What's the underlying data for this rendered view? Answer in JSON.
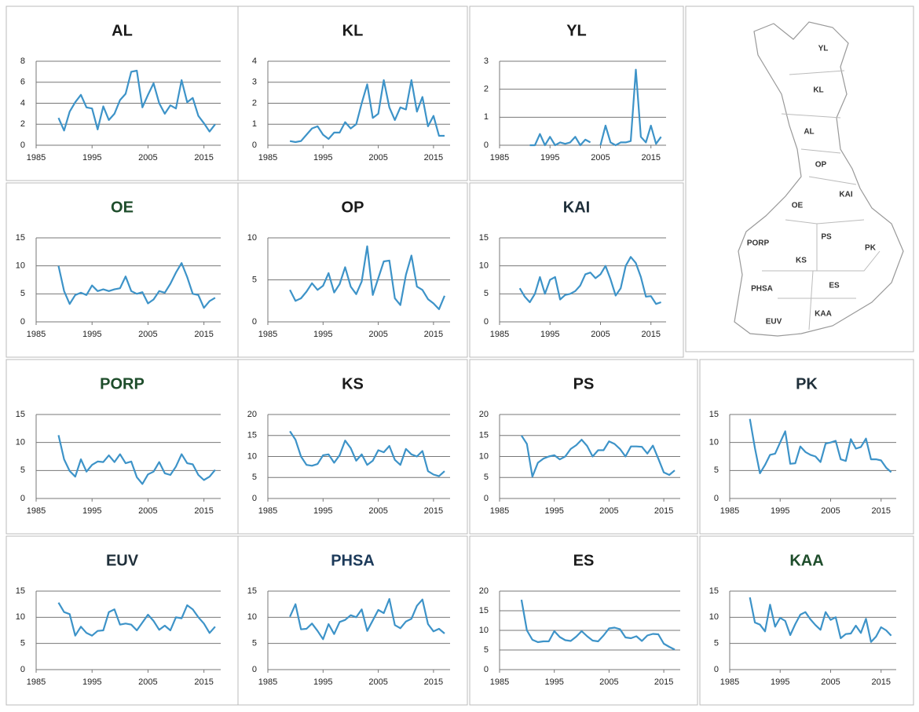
{
  "chart_data": [
    {
      "type": "line",
      "title": "AL",
      "title_color": "#1a1a1a",
      "color": "#3d93c8",
      "x": [
        1989,
        1990,
        1991,
        1992,
        1993,
        1994,
        1995,
        1996,
        1997,
        1998,
        1999,
        2000,
        2001,
        2002,
        2003,
        2004,
        2005,
        2006,
        2007,
        2008,
        2009,
        2010,
        2011,
        2012,
        2013,
        2014,
        2015,
        2016,
        2017
      ],
      "series": [
        {
          "values": [
            2.6,
            1.4,
            3.2,
            4.1,
            4.8,
            3.6,
            3.5,
            1.5,
            3.7,
            2.4,
            3.0,
            4.3,
            4.9,
            7.0,
            7.1,
            3.6,
            4.8,
            5.9,
            4.0,
            3.0,
            3.8,
            3.5,
            6.2,
            4.1,
            4.5,
            2.8,
            2.1,
            1.3,
            2.0
          ]
        }
      ],
      "xlim": [
        1985,
        2018
      ],
      "xticks": [
        1985,
        1995,
        2005,
        2015
      ],
      "ylim": [
        0,
        8
      ],
      "yticks": [
        0,
        2,
        4,
        6,
        8
      ],
      "grid": true
    },
    {
      "type": "line",
      "title": "KL",
      "title_color": "#1a1a1a",
      "color": "#3d93c8",
      "x": [
        1989,
        1990,
        1991,
        1992,
        1993,
        1994,
        1995,
        1996,
        1997,
        1998,
        1999,
        2000,
        2001,
        2002,
        2003,
        2004,
        2005,
        2006,
        2007,
        2008,
        2009,
        2010,
        2011,
        2012,
        2013,
        2014,
        2015,
        2016,
        2017
      ],
      "series": [
        {
          "values": [
            0.2,
            0.15,
            0.2,
            0.5,
            0.8,
            0.9,
            0.5,
            0.3,
            0.6,
            0.6,
            1.1,
            0.8,
            1.0,
            2.0,
            2.9,
            1.3,
            1.5,
            3.1,
            1.8,
            1.2,
            1.8,
            1.7,
            3.1,
            1.6,
            2.3,
            0.9,
            1.4,
            0.45,
            0.45
          ]
        }
      ],
      "xlim": [
        1985,
        2018
      ],
      "xticks": [
        1985,
        1995,
        2005,
        2015
      ],
      "ylim": [
        0,
        4
      ],
      "yticks": [
        0,
        1,
        2,
        3,
        4
      ],
      "grid": true
    },
    {
      "type": "line",
      "title": "YL",
      "title_color": "#1a1a1a",
      "color": "#3d93c8",
      "x": [
        1989,
        1990,
        1991,
        1992,
        1993,
        1994,
        1995,
        1996,
        1997,
        1998,
        1999,
        2000,
        2001,
        2002,
        2003,
        2004,
        2005,
        2006,
        2007,
        2008,
        2009,
        2010,
        2011,
        2012,
        2013,
        2014,
        2015,
        2016,
        2017
      ],
      "series": [
        {
          "values": [
            null,
            null,
            0,
            0,
            0.4,
            0,
            0.3,
            0,
            0.1,
            0.05,
            0.1,
            0.3,
            0,
            0.2,
            0.1,
            null,
            0,
            0.7,
            0.1,
            0,
            0.1,
            0.1,
            0.15,
            2.7,
            0.3,
            0.1,
            0.7,
            0.05,
            0.3
          ]
        }
      ],
      "xlim": [
        1985,
        2018
      ],
      "xticks": [
        1985,
        1995,
        2005,
        2015
      ],
      "ylim": [
        0,
        3
      ],
      "yticks": [
        0,
        1,
        2,
        3
      ],
      "grid": true
    },
    {
      "type": "line",
      "title": "OE",
      "title_color": "#1e4d2b",
      "color": "#3d93c8",
      "x": [
        1989,
        1990,
        1991,
        1992,
        1993,
        1994,
        1995,
        1996,
        1997,
        1998,
        1999,
        2000,
        2001,
        2002,
        2003,
        2004,
        2005,
        2006,
        2007,
        2008,
        2009,
        2010,
        2011,
        2012,
        2013,
        2014,
        2015,
        2016,
        2017
      ],
      "series": [
        {
          "values": [
            10,
            5.5,
            3.2,
            4.8,
            5.2,
            4.8,
            6.5,
            5.5,
            5.8,
            5.5,
            5.8,
            6,
            8.1,
            5.5,
            5,
            5.3,
            3.3,
            4,
            5.5,
            5.2,
            6.8,
            8.8,
            10.5,
            8,
            5,
            4.8,
            2.5,
            3.7,
            4.3
          ]
        }
      ],
      "xlim": [
        1985,
        2018
      ],
      "xticks": [
        1985,
        1995,
        2005,
        2015
      ],
      "ylim": [
        0,
        15
      ],
      "yticks": [
        0,
        5,
        10,
        15
      ],
      "grid": true
    },
    {
      "type": "line",
      "title": "OP",
      "title_color": "#1a1a1a",
      "color": "#3d93c8",
      "x": [
        1989,
        1990,
        1991,
        1992,
        1993,
        1994,
        1995,
        1996,
        1997,
        1998,
        1999,
        2000,
        2001,
        2002,
        2003,
        2004,
        2005,
        2006,
        2007,
        2008,
        2009,
        2010,
        2011,
        2012,
        2013,
        2014,
        2015,
        2016,
        2017
      ],
      "series": [
        {
          "values": [
            3.8,
            2.5,
            2.8,
            3.6,
            4.6,
            3.8,
            4.3,
            5.8,
            3.5,
            4.5,
            6.5,
            4.2,
            3.3,
            4.8,
            9,
            3.2,
            5.2,
            7.2,
            7.3,
            2.8,
            2,
            5.6,
            7.9,
            4.2,
            3.8,
            2.7,
            2.2,
            1.5,
            3.1
          ]
        }
      ],
      "xlim": [
        1985,
        2018
      ],
      "xticks": [
        1985,
        1995,
        2005,
        2015
      ],
      "ylim": [
        0,
        10
      ],
      "yticks": [
        0,
        5,
        10
      ],
      "grid": true
    },
    {
      "type": "line",
      "title": "KAI",
      "title_color": "#1f2f3a",
      "color": "#3d93c8",
      "x": [
        1989,
        1990,
        1991,
        1992,
        1993,
        1994,
        1995,
        1996,
        1997,
        1998,
        1999,
        2000,
        2001,
        2002,
        2003,
        2004,
        2005,
        2006,
        2007,
        2008,
        2009,
        2010,
        2011,
        2012,
        2013,
        2014,
        2015,
        2016,
        2017
      ],
      "series": [
        {
          "values": [
            6,
            4.5,
            3.5,
            5,
            8,
            5,
            7.5,
            8,
            4,
            4.8,
            5,
            5.5,
            6.5,
            8.5,
            8.8,
            7.8,
            8.5,
            10,
            7.6,
            4.7,
            6,
            10,
            11.6,
            10.5,
            8,
            4.5,
            4.6,
            3.2,
            3.5
          ]
        }
      ],
      "xlim": [
        1985,
        2018
      ],
      "xticks": [
        1985,
        1995,
        2005,
        2015
      ],
      "ylim": [
        0,
        15
      ],
      "yticks": [
        0,
        5,
        10,
        15
      ],
      "grid": true
    },
    {
      "type": "line",
      "title": "PORP",
      "title_color": "#1e4d2b",
      "color": "#3d93c8",
      "x": [
        1989,
        1990,
        1991,
        1992,
        1993,
        1994,
        1995,
        1996,
        1997,
        1998,
        1999,
        2000,
        2001,
        2002,
        2003,
        2004,
        2005,
        2006,
        2007,
        2008,
        2009,
        2010,
        2011,
        2012,
        2013,
        2014,
        2015,
        2016,
        2017
      ],
      "series": [
        {
          "values": [
            11.3,
            7,
            4.9,
            3.9,
            7,
            4.8,
            6,
            6.6,
            6.5,
            7.7,
            6.5,
            7.9,
            6.3,
            6.6,
            3.8,
            2.6,
            4.3,
            4.8,
            6.5,
            4.5,
            4.2,
            5.7,
            7.9,
            6.3,
            6.1,
            4.2,
            3.3,
            3.9,
            5.1
          ]
        }
      ],
      "xlim": [
        1985,
        2018
      ],
      "xticks": [
        1985,
        1995,
        2005,
        2015
      ],
      "ylim": [
        0,
        15
      ],
      "yticks": [
        0,
        5,
        10,
        15
      ],
      "grid": true
    },
    {
      "type": "line",
      "title": "KS",
      "title_color": "#1a1a1a",
      "color": "#3d93c8",
      "x": [
        1989,
        1990,
        1991,
        1992,
        1993,
        1994,
        1995,
        1996,
        1997,
        1998,
        1999,
        2000,
        2001,
        2002,
        2003,
        2004,
        2005,
        2006,
        2007,
        2008,
        2009,
        2010,
        2011,
        2012,
        2013,
        2014,
        2015,
        2016,
        2017
      ],
      "series": [
        {
          "values": [
            16,
            14,
            10,
            8,
            7.8,
            8.2,
            10.3,
            10.5,
            8.5,
            10.3,
            13.8,
            12,
            9,
            10.5,
            8,
            9,
            11.5,
            11,
            12.5,
            9.2,
            8,
            11.8,
            10.5,
            10,
            11.3,
            6.5,
            5.7,
            5.3,
            6.5
          ]
        }
      ],
      "xlim": [
        1985,
        2018
      ],
      "xticks": [
        1985,
        1995,
        2005,
        2015
      ],
      "ylim": [
        0,
        20
      ],
      "yticks": [
        0,
        5,
        10,
        15,
        20
      ],
      "grid": true
    },
    {
      "type": "line",
      "title": "PS",
      "title_color": "#1a1a1a",
      "color": "#3d93c8",
      "x": [
        1989,
        1990,
        1991,
        1992,
        1993,
        1994,
        1995,
        1996,
        1997,
        1998,
        1999,
        2000,
        2001,
        2002,
        2003,
        2004,
        2005,
        2006,
        2007,
        2008,
        2009,
        2010,
        2011,
        2012,
        2013,
        2014,
        2015,
        2016,
        2017
      ],
      "series": [
        {
          "values": [
            15,
            13,
            5.2,
            8.5,
            9.5,
            10,
            10.3,
            9.3,
            10,
            11.8,
            12.7,
            14,
            12.5,
            10,
            11.5,
            11.5,
            13.6,
            13,
            11.8,
            10,
            12.4,
            12.4,
            12.3,
            10.7,
            12.6,
            9.5,
            6.2,
            5.6,
            6.7
          ]
        }
      ],
      "xlim": [
        1985,
        2018
      ],
      "xticks": [
        1985,
        1995,
        2005,
        2015
      ],
      "ylim": [
        0,
        20
      ],
      "yticks": [
        0,
        5,
        10,
        15,
        20
      ],
      "grid": true
    },
    {
      "type": "line",
      "title": "PK",
      "title_color": "#1f2f3a",
      "color": "#3d93c8",
      "x": [
        1989,
        1990,
        1991,
        1992,
        1993,
        1994,
        1995,
        1996,
        1997,
        1998,
        1999,
        2000,
        2001,
        2002,
        2003,
        2004,
        2005,
        2006,
        2007,
        2008,
        2009,
        2010,
        2011,
        2012,
        2013,
        2014,
        2015,
        2016,
        2017
      ],
      "series": [
        {
          "values": [
            14.2,
            9,
            4.5,
            6,
            7.8,
            8,
            10,
            12,
            6.2,
            6.3,
            9.3,
            8.3,
            7.8,
            7.5,
            6.5,
            9.8,
            10,
            10.3,
            7,
            6.7,
            10.6,
            8.9,
            9.2,
            10.7,
            7,
            7,
            6.8,
            5.5,
            4.7
          ]
        }
      ],
      "xlim": [
        1985,
        2018
      ],
      "xticks": [
        1985,
        1995,
        2005,
        2015
      ],
      "ylim": [
        0,
        15
      ],
      "yticks": [
        0,
        5,
        10,
        15
      ],
      "grid": true
    },
    {
      "type": "line",
      "title": "EUV",
      "title_color": "#1f2f3a",
      "color": "#3d93c8",
      "x": [
        1989,
        1990,
        1991,
        1992,
        1993,
        1994,
        1995,
        1996,
        1997,
        1998,
        1999,
        2000,
        2001,
        2002,
        2003,
        2004,
        2005,
        2006,
        2007,
        2008,
        2009,
        2010,
        2011,
        2012,
        2013,
        2014,
        2015,
        2016,
        2017
      ],
      "series": [
        {
          "values": [
            12.8,
            11,
            10.6,
            6.5,
            8.2,
            7,
            6.5,
            7.4,
            7.5,
            11,
            11.5,
            8.6,
            8.8,
            8.6,
            7.5,
            9,
            10.5,
            9.3,
            7.6,
            8.4,
            7.5,
            10,
            9.8,
            12.3,
            11.5,
            10,
            8.8,
            7,
            8.2
          ]
        }
      ],
      "xlim": [
        1985,
        2018
      ],
      "xticks": [
        1985,
        1995,
        2005,
        2015
      ],
      "ylim": [
        0,
        15
      ],
      "yticks": [
        0,
        5,
        10,
        15
      ],
      "grid": true
    },
    {
      "type": "line",
      "title": "PHSA",
      "title_color": "#1c3a5a",
      "color": "#3d93c8",
      "x": [
        1989,
        1990,
        1991,
        1992,
        1993,
        1994,
        1995,
        1996,
        1997,
        1998,
        1999,
        2000,
        2001,
        2002,
        2003,
        2004,
        2005,
        2006,
        2007,
        2008,
        2009,
        2010,
        2011,
        2012,
        2013,
        2014,
        2015,
        2016,
        2017
      ],
      "series": [
        {
          "values": [
            10.1,
            12.5,
            7.7,
            7.8,
            8.8,
            7.4,
            5.8,
            8.7,
            6.8,
            9.1,
            9.5,
            10.4,
            10,
            11.5,
            7.4,
            9.4,
            11.4,
            10.8,
            13.5,
            8.5,
            7.9,
            9.2,
            9.7,
            12.2,
            13.4,
            8.7,
            7.3,
            7.8,
            6.9
          ]
        }
      ],
      "xlim": [
        1985,
        2018
      ],
      "xticks": [
        1985,
        1995,
        2005,
        2015
      ],
      "ylim": [
        0,
        15
      ],
      "yticks": [
        0,
        5,
        10,
        15
      ],
      "grid": true
    },
    {
      "type": "line",
      "title": "ES",
      "title_color": "#1a1a1a",
      "color": "#3d93c8",
      "x": [
        1989,
        1990,
        1991,
        1992,
        1993,
        1994,
        1995,
        1996,
        1997,
        1998,
        1999,
        2000,
        2001,
        2002,
        2003,
        2004,
        2005,
        2006,
        2007,
        2008,
        2009,
        2010,
        2011,
        2012,
        2013,
        2014,
        2015,
        2016,
        2017
      ],
      "series": [
        {
          "values": [
            17.8,
            10,
            7.6,
            7,
            7.2,
            7.2,
            9.8,
            8.3,
            7.5,
            7.3,
            8.4,
            9.8,
            8.5,
            7.4,
            7.2,
            8.7,
            10.5,
            10.7,
            10.3,
            8.2,
            8,
            8.5,
            7.3,
            8.7,
            9.1,
            9,
            6.6,
            5.8,
            5.1
          ]
        }
      ],
      "xlim": [
        1985,
        2018
      ],
      "xticks": [
        1985,
        1995,
        2005,
        2015
      ],
      "ylim": [
        0,
        20
      ],
      "yticks": [
        0,
        5,
        10,
        15,
        20
      ],
      "grid": true
    },
    {
      "type": "line",
      "title": "KAA",
      "title_color": "#1e4d2b",
      "color": "#3d93c8",
      "x": [
        1989,
        1990,
        1991,
        1992,
        1993,
        1994,
        1995,
        1996,
        1997,
        1998,
        1999,
        2000,
        2001,
        2002,
        2003,
        2004,
        2005,
        2006,
        2007,
        2008,
        2009,
        2010,
        2011,
        2012,
        2013,
        2014,
        2015,
        2016,
        2017
      ],
      "series": [
        {
          "values": [
            13.8,
            9,
            8.6,
            7.3,
            12.4,
            8.2,
            9.9,
            9.3,
            6.6,
            8.7,
            10.5,
            11,
            9.6,
            8.5,
            7.6,
            11,
            9.5,
            10,
            6,
            6.8,
            6.9,
            8.4,
            7,
            9.7,
            5.3,
            6.3,
            8.1,
            7.5,
            6.5
          ]
        }
      ],
      "xlim": [
        1985,
        2018
      ],
      "xticks": [
        1985,
        1995,
        2005,
        2015
      ],
      "ylim": [
        0,
        15
      ],
      "yticks": [
        0,
        5,
        10,
        15
      ],
      "grid": true
    }
  ],
  "map": {
    "labels": [
      "YL",
      "KL",
      "AL",
      "OP",
      "KAI",
      "OE",
      "PORP",
      "PS",
      "PK",
      "KS",
      "PHSA",
      "ES",
      "KAA",
      "EUV"
    ]
  }
}
